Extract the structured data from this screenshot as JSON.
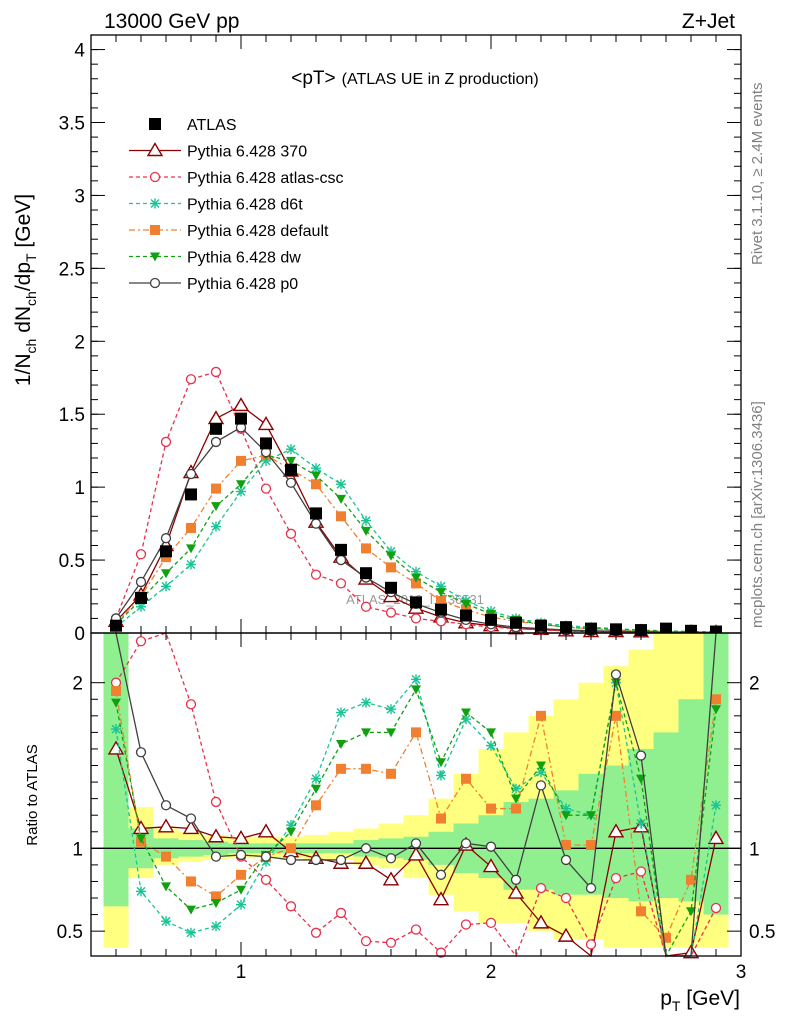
{
  "header": {
    "left": "13000 GeV pp",
    "right": "Z+Jet"
  },
  "side_texts": {
    "rivet": "Rivet 3.1.10, ≥ 2.4M events",
    "mcplots": "mcplots.cern.ch [arXiv:1306.3436]"
  },
  "watermark": "ATLAS_2019_I1736531",
  "chart_data": [
    {
      "type": "line",
      "title_main": "<pT>",
      "title_sub": "(ATLAS UE in Z production)",
      "ylabel_main": "1/N",
      "ylabel_sub1": "ch",
      "ylabel_mid": " dN",
      "ylabel_sub2": "ch",
      "ylabel_end": "/dp",
      "ylabel_sub3": "T",
      "ylabel_unit": " [GeV]",
      "xlim": [
        0.4,
        3.0
      ],
      "ylim": [
        0,
        4.1
      ],
      "y_ticks": [
        "0",
        "0.5",
        "1",
        "1.5",
        "2",
        "2.5",
        "3",
        "3.5",
        "4"
      ],
      "x": [
        0.5,
        0.6,
        0.7,
        0.8,
        0.9,
        1.0,
        1.1,
        1.2,
        1.3,
        1.4,
        1.5,
        1.6,
        1.7,
        1.8,
        1.9,
        2.0,
        2.1,
        2.2,
        2.3,
        2.4,
        2.5,
        2.6,
        2.7,
        2.8,
        2.9
      ],
      "data": {
        "name": "ATLAS",
        "values": [
          0.05,
          0.24,
          0.56,
          0.95,
          1.4,
          1.47,
          1.3,
          1.12,
          0.82,
          0.57,
          0.41,
          0.31,
          0.21,
          0.16,
          0.12,
          0.09,
          0.07,
          0.05,
          0.04,
          0.03,
          0.025,
          0.02,
          0.03,
          0.015,
          0.01
        ]
      },
      "series": [
        {
          "name": "Pythia 6.428 370",
          "color": "#8b0000",
          "dash": "",
          "marker": "triangle-open",
          "values": [
            0.08,
            0.26,
            0.6,
            1.1,
            1.47,
            1.56,
            1.43,
            1.11,
            0.76,
            0.52,
            0.37,
            0.25,
            0.17,
            0.11,
            0.07,
            0.05,
            0.03,
            0.025,
            0.015,
            0.01,
            0.01,
            0.008,
            0.005,
            0.004,
            0.003
          ]
        },
        {
          "name": "Pythia 6.428 atlas-csc",
          "color": "#e8304c",
          "dash": "4,3",
          "marker": "circle-open",
          "values": [
            0.1,
            0.54,
            1.31,
            1.74,
            1.79,
            1.4,
            0.99,
            0.68,
            0.4,
            0.34,
            0.18,
            0.14,
            0.1,
            0.08,
            0.06,
            0.04,
            0.03,
            0.02,
            0.015,
            0.01,
            0.008,
            0.006,
            0.004,
            0.003,
            0.002
          ]
        },
        {
          "name": "Pythia 6.428 d6t",
          "color": "#19c495",
          "dash": "4,3",
          "marker": "star",
          "values": [
            0.04,
            0.18,
            0.32,
            0.47,
            0.73,
            0.97,
            1.18,
            1.26,
            1.13,
            1.02,
            0.77,
            0.56,
            0.42,
            0.32,
            0.22,
            0.15,
            0.1,
            0.07,
            0.05,
            0.04,
            0.03,
            0.02,
            0.015,
            0.01,
            0.008
          ]
        },
        {
          "name": "Pythia 6.428 default",
          "color": "#f08030",
          "dash": "6,3,2,3",
          "marker": "square",
          "values": [
            0.07,
            0.25,
            0.52,
            0.72,
            0.99,
            1.18,
            1.22,
            1.12,
            1.02,
            0.8,
            0.58,
            0.45,
            0.34,
            0.22,
            0.16,
            0.11,
            0.08,
            0.06,
            0.04,
            0.03,
            0.02,
            0.015,
            0.01,
            0.008,
            0.006
          ]
        },
        {
          "name": "Pythia 6.428 dw",
          "color": "#10a010",
          "dash": "4,3",
          "marker": "triangle-down",
          "values": [
            0.06,
            0.23,
            0.41,
            0.58,
            0.87,
            1.02,
            1.22,
            1.18,
            1.08,
            0.92,
            0.7,
            0.53,
            0.38,
            0.28,
            0.2,
            0.13,
            0.09,
            0.06,
            0.04,
            0.03,
            0.025,
            0.018,
            0.012,
            0.009,
            0.006
          ]
        },
        {
          "name": "Pythia 6.428 p0",
          "color": "#404040",
          "dash": "",
          "marker": "circle-open",
          "values": [
            0.1,
            0.35,
            0.65,
            1.09,
            1.31,
            1.41,
            1.24,
            1.03,
            0.75,
            0.5,
            0.38,
            0.28,
            0.2,
            0.14,
            0.09,
            0.06,
            0.04,
            0.03,
            0.02,
            0.015,
            0.012,
            0.009,
            0.006,
            0.004,
            0.003
          ]
        }
      ]
    },
    {
      "type": "line",
      "ylabel": "Ratio to ATLAS",
      "xlabel_main": "p",
      "xlabel_sub": "T",
      "xlabel_unit": " [GeV]",
      "xlim": [
        0.4,
        3.0
      ],
      "ylim": [
        0.35,
        2.3
      ],
      "x_ticks": [
        "1",
        "2",
        "3"
      ],
      "y_ticks": [
        "0.5",
        "1",
        "2"
      ],
      "x": [
        0.5,
        0.6,
        0.7,
        0.8,
        0.9,
        1.0,
        1.1,
        1.2,
        1.3,
        1.4,
        1.5,
        1.6,
        1.7,
        1.8,
        1.9,
        2.0,
        2.1,
        2.2,
        2.3,
        2.4,
        2.5,
        2.6,
        2.7,
        2.8,
        2.9
      ],
      "band_inner": [
        0.65,
        0.88,
        0.94,
        0.95,
        0.96,
        0.97,
        0.97,
        0.97,
        0.97,
        0.97,
        0.95,
        0.94,
        0.93,
        0.9,
        0.85,
        0.82,
        0.75,
        0.75,
        0.72,
        0.72,
        0.7,
        0.68,
        0.7,
        0.68,
        0.6
      ],
      "band_inner_hi": [
        2.3,
        1.12,
        1.06,
        1.05,
        1.04,
        1.03,
        1.03,
        1.03,
        1.03,
        1.03,
        1.05,
        1.06,
        1.07,
        1.1,
        1.15,
        1.2,
        1.28,
        1.3,
        1.35,
        1.45,
        1.5,
        1.6,
        1.7,
        1.9,
        2.3
      ],
      "band_outer": [
        0.4,
        0.82,
        0.9,
        0.92,
        0.93,
        0.94,
        0.94,
        0.94,
        0.93,
        0.93,
        0.9,
        0.88,
        0.82,
        0.72,
        0.62,
        0.55,
        0.55,
        0.5,
        0.45,
        0.45,
        0.4,
        0.4,
        0.4,
        0.4,
        0.4
      ],
      "band_outer_hi": [
        2.3,
        1.25,
        1.12,
        1.1,
        1.08,
        1.07,
        1.07,
        1.07,
        1.08,
        1.1,
        1.12,
        1.15,
        1.2,
        1.3,
        1.45,
        1.6,
        1.7,
        1.8,
        1.9,
        2.0,
        2.1,
        2.2,
        2.3,
        2.3,
        2.3
      ],
      "series": [
        {
          "name": "Pythia 6.428 370",
          "values": [
            1.6,
            1.12,
            1.13,
            1.12,
            1.07,
            1.06,
            1.1,
            0.98,
            0.94,
            0.91,
            0.91,
            0.81,
            0.96,
            0.69,
            1.02,
            0.89,
            0.73,
            0.55,
            0.47,
            0.3,
            1.1,
            1.13,
            0.3,
            0.37,
            1.06
          ]
        },
        {
          "name": "Pythia 6.428 atlas-csc",
          "values": [
            2.0,
            2.25,
            2.34,
            1.87,
            1.28,
            0.95,
            0.81,
            0.65,
            0.49,
            0.61,
            0.44,
            0.43,
            0.51,
            0.37,
            0.54,
            0.55,
            0.3,
            0.76,
            0.7,
            0.42,
            0.82,
            0.86,
            0.3,
            0.3,
            0.64
          ]
        },
        {
          "name": "Pythia 6.428 d6t",
          "values": [
            1.72,
            0.74,
            0.56,
            0.49,
            0.53,
            0.66,
            0.92,
            1.14,
            1.42,
            1.82,
            1.88,
            1.84,
            2.02,
            1.44,
            1.78,
            1.62,
            1.36,
            1.46,
            1.24,
            1.2,
            2.0,
            1.15,
            0.3,
            0.3,
            1.26
          ]
        },
        {
          "name": "Pythia 6.428 default",
          "values": [
            1.95,
            1.04,
            0.95,
            0.8,
            0.71,
            0.84,
            0.95,
            1.0,
            1.26,
            1.48,
            1.48,
            1.45,
            1.7,
            1.18,
            1.42,
            1.24,
            1.24,
            1.8,
            1.02,
            1.02,
            1.8,
            0.62,
            0.46,
            0.81,
            1.9
          ]
        },
        {
          "name": "Pythia 6.428 dw",
          "values": [
            1.88,
            1.06,
            0.77,
            0.63,
            0.67,
            0.75,
            0.96,
            1.1,
            1.36,
            1.63,
            1.7,
            1.7,
            1.96,
            1.52,
            1.82,
            1.7,
            1.3,
            1.5,
            1.2,
            1.2,
            2.0,
            1.42,
            0.35,
            0.62,
            1.84
          ]
        },
        {
          "name": "Pythia 6.428 p0",
          "values": [
            2.32,
            1.58,
            1.26,
            1.18,
            0.95,
            0.96,
            0.95,
            0.93,
            0.93,
            0.93,
            1.0,
            0.94,
            1.03,
            0.84,
            1.03,
            1.01,
            0.81,
            1.38,
            0.93,
            0.76,
            2.05,
            1.56,
            0.3,
            0.3,
            2.3
          ]
        }
      ]
    }
  ]
}
